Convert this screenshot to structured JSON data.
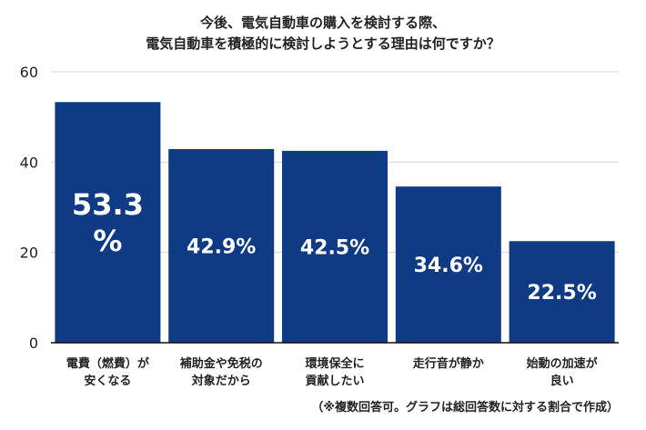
{
  "title_lines": [
    "今後、電気自動車の購入を検討する際、",
    "電気自動車を積極的に検討しようとする理由は何ですか？"
  ],
  "footnote": "（※複数回答可。グラフは総回答数に対する割合で作成）",
  "colors": {
    "bar": "#0f3b85",
    "grid": "#d4d4d4",
    "axis": "#111111",
    "label": "#ffffff"
  },
  "chart_data": {
    "type": "bar",
    "categories": [
      [
        "電費（燃費）が",
        "安くなる"
      ],
      [
        "補助金や免税の",
        "対象だから"
      ],
      [
        "環境保全に",
        "貢献したい"
      ],
      [
        "走行音が静か"
      ],
      [
        "始動の加速が",
        "良い"
      ]
    ],
    "values": [
      53.3,
      42.9,
      42.5,
      34.6,
      22.5
    ],
    "data_labels": [
      [
        "53.3",
        "%"
      ],
      [
        "42.9%"
      ],
      [
        "42.5%"
      ],
      [
        "34.6%"
      ],
      [
        "22.5%"
      ]
    ],
    "yticks": [
      0,
      20,
      40,
      60
    ],
    "ylim": [
      0,
      60
    ],
    "grid": true
  }
}
